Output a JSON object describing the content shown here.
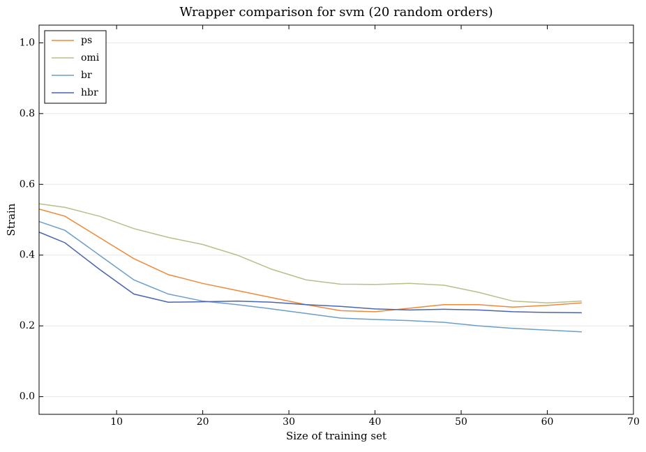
{
  "chart_data": {
    "type": "line",
    "title": "Wrapper comparison for svm (20 random orders)",
    "x_label": "Size of training set",
    "y_label": "Strain",
    "x": [
      1,
      4,
      8,
      12,
      16,
      20,
      24,
      28,
      32,
      36,
      40,
      44,
      48,
      52,
      56,
      60,
      64
    ],
    "series": [
      {
        "name": "ps",
        "color": "#f0883a",
        "values": [
          0.53,
          0.51,
          0.45,
          0.39,
          0.345,
          0.32,
          0.3,
          0.28,
          0.26,
          0.243,
          0.24,
          0.25,
          0.26,
          0.26,
          0.253,
          0.258,
          0.265
        ]
      },
      {
        "name": "omi",
        "color": "#b5c08a",
        "values": [
          0.545,
          0.535,
          0.51,
          0.475,
          0.45,
          0.43,
          0.4,
          0.36,
          0.33,
          0.318,
          0.317,
          0.32,
          0.315,
          0.295,
          0.27,
          0.265,
          0.27
        ]
      },
      {
        "name": "br",
        "color": "#6a9ec9",
        "values": [
          0.495,
          0.47,
          0.4,
          0.33,
          0.29,
          0.27,
          0.26,
          0.248,
          0.235,
          0.222,
          0.218,
          0.215,
          0.21,
          0.2,
          0.193,
          0.188,
          0.183
        ]
      },
      {
        "name": "hbr",
        "color": "#4a64b0",
        "values": [
          0.465,
          0.435,
          0.36,
          0.29,
          0.267,
          0.268,
          0.27,
          0.267,
          0.26,
          0.255,
          0.248,
          0.245,
          0.247,
          0.245,
          0.24,
          0.238,
          0.237
        ]
      }
    ],
    "xlim": [
      1,
      70
    ],
    "ylim": [
      -0.05,
      1.05
    ],
    "xticks": [
      10,
      20,
      30,
      40,
      50,
      60,
      70
    ],
    "yticks": [
      {
        "value": 0,
        "label": "0.0"
      },
      0.2,
      0.4,
      0.6,
      0.8,
      {
        "value": 1,
        "label": "1.0"
      }
    ],
    "grid": true,
    "legend": "upper-left"
  }
}
